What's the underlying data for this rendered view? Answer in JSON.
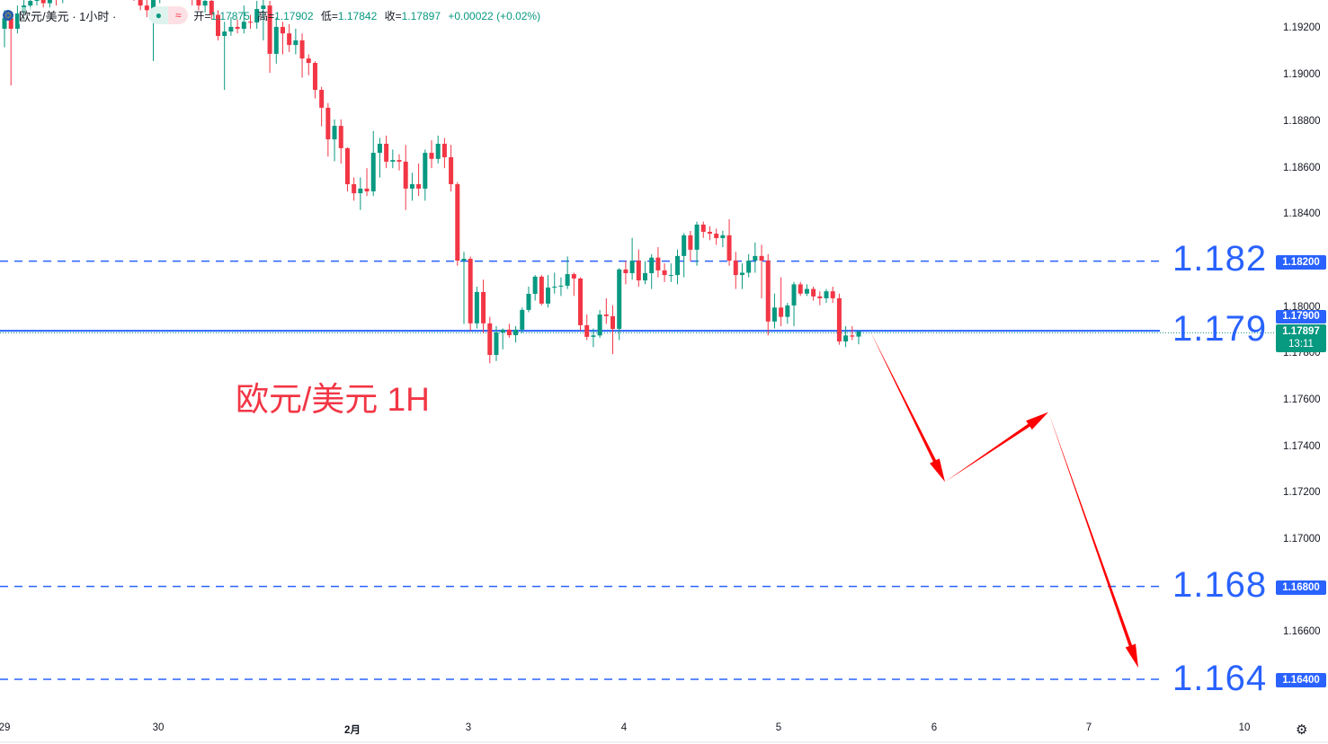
{
  "header": {
    "symbol": "欧元/美元 · 1小时 ·",
    "open_label": "开=",
    "open": "1.17875",
    "high_label": "高=",
    "high": "1.17902",
    "low_label": "低=",
    "low": "1.17842",
    "close_label": "收=",
    "close": "1.17897",
    "change": "+0.00022 (+0.02%)",
    "market_dot_icon": "●",
    "wave_icon": "≈"
  },
  "annotation": "欧元/美元 1H",
  "levels": [
    {
      "label": "1.182",
      "price": 1.182,
      "badge": "1.18200",
      "style": "dashed"
    },
    {
      "label": "1.179",
      "price": 1.179,
      "badge": "1.17900",
      "style": "solid"
    },
    {
      "label": "1.168",
      "price": 1.168,
      "badge": "1.16800",
      "style": "dashed"
    },
    {
      "label": "1.164",
      "price": 1.164,
      "badge": "1.16400",
      "style": "dashed"
    }
  ],
  "current_price": {
    "value": "1.17897",
    "countdown": "13:11",
    "price": 1.17897
  },
  "price_axis": [
    "1.19200",
    "1.19000",
    "1.18800",
    "1.18600",
    "1.18400",
    "1.18000",
    "1.17800",
    "1.17600",
    "1.17400",
    "1.17200",
    "1.17000",
    "1.16600"
  ],
  "time_axis": [
    "29",
    "30",
    "2月",
    "3",
    "4",
    "5",
    "6",
    "7",
    "10"
  ],
  "colors": {
    "up": "#089981",
    "down": "#f23645",
    "level": "#2962ff",
    "arrow": "#ff0000"
  },
  "chart_data": {
    "type": "candlestick",
    "title": "欧元/美元 · 1小时",
    "ylim": [
      1.1615,
      1.1932
    ],
    "projection_path": [
      1.17897,
      1.1725,
      1.1755,
      1.1645
    ],
    "candles": [
      [
        1.192,
        1.1928,
        1.1912,
        1.19246
      ],
      [
        1.19246,
        1.1927,
        1.18956,
        1.192
      ],
      [
        1.192,
        1.193,
        1.1918,
        1.19266
      ],
      [
        1.19266,
        1.1934,
        1.1924,
        1.193
      ],
      [
        1.193,
        1.1936,
        1.1928,
        1.1932
      ],
      [
        1.1932,
        1.1938,
        1.193,
        1.1934
      ],
      [
        1.1934,
        1.1937,
        1.1929,
        1.1931
      ],
      [
        1.1931,
        1.1939,
        1.1929,
        1.1935
      ],
      [
        1.1935,
        1.1938,
        1.193,
        1.1933
      ],
      [
        1.1933,
        1.194,
        1.1931,
        1.1936
      ],
      [
        1.1936,
        1.1942,
        1.1934,
        1.1938
      ],
      [
        1.1938,
        1.1944,
        1.1936,
        1.194
      ],
      [
        1.194,
        1.1943,
        1.1936,
        1.1939
      ],
      [
        1.1939,
        1.1945,
        1.1937,
        1.1941
      ],
      [
        1.1941,
        1.1944,
        1.1938,
        1.194
      ],
      [
        1.194,
        1.1946,
        1.1938,
        1.1942
      ],
      [
        1.1942,
        1.1945,
        1.1937,
        1.1939
      ],
      [
        1.1939,
        1.1943,
        1.1936,
        1.194
      ],
      [
        1.194,
        1.1942,
        1.1935,
        1.1938
      ],
      [
        1.1938,
        1.1941,
        1.1934,
        1.1937
      ],
      [
        1.1937,
        1.194,
        1.1932,
        1.1934
      ],
      [
        1.1934,
        1.1936,
        1.1928,
        1.193
      ],
      [
        1.193,
        1.1933,
        1.1925,
        1.1928
      ],
      [
        1.1928,
        1.1935,
        1.19061,
        1.1933
      ],
      [
        1.1933,
        1.1938,
        1.1931,
        1.1935
      ],
      [
        1.1935,
        1.194,
        1.1933,
        1.1937
      ],
      [
        1.1937,
        1.194,
        1.1934,
        1.1936
      ],
      [
        1.1936,
        1.1942,
        1.1934,
        1.1938
      ],
      [
        1.1938,
        1.194,
        1.1933,
        1.1935
      ],
      [
        1.1935,
        1.1937,
        1.193,
        1.1933
      ],
      [
        1.1933,
        1.1935,
        1.1928,
        1.193
      ],
      [
        1.193,
        1.1934,
        1.1927,
        1.1932
      ],
      [
        1.1932,
        1.1934,
        1.1924,
        1.1926
      ],
      [
        1.1926,
        1.1928,
        1.1915,
        1.19169
      ],
      [
        1.19169,
        1.1923,
        1.18937,
        1.19188
      ],
      [
        1.19188,
        1.1925,
        1.1917,
        1.19208
      ],
      [
        1.19208,
        1.1924,
        1.1918,
        1.192
      ],
      [
        1.192,
        1.193,
        1.1918,
        1.1923
      ],
      [
        1.1923,
        1.1926,
        1.192,
        1.19227
      ],
      [
        1.19227,
        1.1932,
        1.192,
        1.19285
      ],
      [
        1.19285,
        1.1933,
        1.1915,
        1.193
      ],
      [
        1.193,
        1.1932,
        1.1901,
        1.19092
      ],
      [
        1.19092,
        1.1925,
        1.1905,
        1.19208
      ],
      [
        1.19208,
        1.1923,
        1.1909,
        1.1918
      ],
      [
        1.1918,
        1.1922,
        1.191,
        1.1913
      ],
      [
        1.1913,
        1.192,
        1.1909,
        1.1915
      ],
      [
        1.1915,
        1.1918,
        1.1899,
        1.19072
      ],
      [
        1.19072,
        1.1909,
        1.19,
        1.19053
      ],
      [
        1.19053,
        1.1906,
        1.189,
        1.18937
      ],
      [
        1.18937,
        1.1895,
        1.1878,
        1.1886
      ],
      [
        1.1886,
        1.1888,
        1.1865,
        1.18724
      ],
      [
        1.18724,
        1.1881,
        1.1863,
        1.18782
      ],
      [
        1.18782,
        1.1881,
        1.1862,
        1.18686
      ],
      [
        1.18686,
        1.1869,
        1.185,
        1.18531
      ],
      [
        1.18531,
        1.1856,
        1.1846,
        1.18492
      ],
      [
        1.18492,
        1.1856,
        1.1842,
        1.18512
      ],
      [
        1.18512,
        1.186,
        1.1848,
        1.185
      ],
      [
        1.185,
        1.1876,
        1.1848,
        1.18666
      ],
      [
        1.18666,
        1.1873,
        1.1856,
        1.18705
      ],
      [
        1.18705,
        1.1874,
        1.186,
        1.18628
      ],
      [
        1.18628,
        1.1868,
        1.186,
        1.18635
      ],
      [
        1.18635,
        1.1866,
        1.1859,
        1.18628
      ],
      [
        1.18628,
        1.187,
        1.1842,
        1.18512
      ],
      [
        1.18512,
        1.1858,
        1.1846,
        1.18531
      ],
      [
        1.18531,
        1.1862,
        1.1848,
        1.18512
      ],
      [
        1.18512,
        1.1868,
        1.1846,
        1.18666
      ],
      [
        1.18666,
        1.1872,
        1.186,
        1.1864
      ],
      [
        1.1864,
        1.1874,
        1.1862,
        1.18705
      ],
      [
        1.18705,
        1.1873,
        1.186,
        1.18647
      ],
      [
        1.18647,
        1.187,
        1.185,
        1.18531
      ],
      [
        1.18531,
        1.1854,
        1.1818,
        1.18202
      ],
      [
        1.18202,
        1.1824,
        1.1793,
        1.1821
      ],
      [
        1.1821,
        1.1822,
        1.179,
        1.17932
      ],
      [
        1.17932,
        1.1809,
        1.1791,
        1.18067
      ],
      [
        1.18067,
        1.1812,
        1.1789,
        1.17932
      ],
      [
        1.17932,
        1.1796,
        1.1776,
        1.17796
      ],
      [
        1.17796,
        1.1792,
        1.1777,
        1.17893
      ],
      [
        1.17893,
        1.1791,
        1.1782,
        1.17905
      ],
      [
        1.17905,
        1.1793,
        1.1787,
        1.17881
      ],
      [
        1.17881,
        1.1792,
        1.1785,
        1.17905
      ],
      [
        1.17905,
        1.18,
        1.1789,
        1.1799
      ],
      [
        1.1799,
        1.1809,
        1.1798,
        1.18059
      ],
      [
        1.18059,
        1.1814,
        1.1803,
        1.18133
      ],
      [
        1.18133,
        1.1814,
        1.1801,
        1.18017
      ],
      [
        1.18017,
        1.1814,
        1.18,
        1.18086
      ],
      [
        1.18086,
        1.1815,
        1.1806,
        1.1809
      ],
      [
        1.1809,
        1.1813,
        1.1805,
        1.18094
      ],
      [
        1.18094,
        1.1822,
        1.1808,
        1.18144
      ],
      [
        1.18144,
        1.1815,
        1.1805,
        1.18125
      ],
      [
        1.18125,
        1.1813,
        1.179,
        1.17924
      ],
      [
        1.17924,
        1.1797,
        1.1786,
        1.17874
      ],
      [
        1.17874,
        1.1791,
        1.1783,
        1.1788
      ],
      [
        1.1788,
        1.1799,
        1.1787,
        1.1797
      ],
      [
        1.1797,
        1.1804,
        1.1793,
        1.17963
      ],
      [
        1.17963,
        1.1801,
        1.178,
        1.17908
      ],
      [
        1.17908,
        1.1817,
        1.1786,
        1.18164
      ],
      [
        1.18164,
        1.182,
        1.181,
        1.18148
      ],
      [
        1.18148,
        1.183,
        1.1812,
        1.18202
      ],
      [
        1.18202,
        1.1825,
        1.1809,
        1.18117
      ],
      [
        1.18117,
        1.182,
        1.181,
        1.18148
      ],
      [
        1.18148,
        1.1823,
        1.1808,
        1.18215
      ],
      [
        1.18215,
        1.1826,
        1.1813,
        1.1816
      ],
      [
        1.1816,
        1.1819,
        1.1811,
        1.1814
      ],
      [
        1.1814,
        1.1819,
        1.1811,
        1.1814
      ],
      [
        1.1814,
        1.1825,
        1.181,
        1.18222
      ],
      [
        1.18222,
        1.1832,
        1.1813,
        1.18311
      ],
      [
        1.18311,
        1.1833,
        1.182,
        1.18249
      ],
      [
        1.18249,
        1.1837,
        1.1818,
        1.18357
      ],
      [
        1.18357,
        1.1837,
        1.183,
        1.18326
      ],
      [
        1.18326,
        1.1835,
        1.1829,
        1.18318
      ],
      [
        1.18318,
        1.1834,
        1.1827,
        1.18299
      ],
      [
        1.18299,
        1.1833,
        1.1826,
        1.18311
      ],
      [
        1.18311,
        1.1838,
        1.1818,
        1.18202
      ],
      [
        1.18202,
        1.1824,
        1.1808,
        1.1814
      ],
      [
        1.1814,
        1.1819,
        1.1808,
        1.1815
      ],
      [
        1.1815,
        1.1823,
        1.1813,
        1.18202
      ],
      [
        1.18202,
        1.1828,
        1.1815,
        1.18222
      ],
      [
        1.18222,
        1.1827,
        1.1804,
        1.18202
      ],
      [
        1.18202,
        1.1823,
        1.1788,
        1.1794
      ],
      [
        1.1794,
        1.1806,
        1.1791,
        1.18
      ],
      [
        1.18,
        1.1813,
        1.1792,
        1.1796
      ],
      [
        1.1796,
        1.1802,
        1.1793,
        1.18009
      ],
      [
        1.18009,
        1.1811,
        1.1792,
        1.181
      ],
      [
        1.181,
        1.1811,
        1.1805,
        1.1806
      ],
      [
        1.1806,
        1.181,
        1.1805,
        1.1808
      ],
      [
        1.1808,
        1.1809,
        1.1803,
        1.18048
      ],
      [
        1.18048,
        1.1807,
        1.1801,
        1.1804
      ],
      [
        1.1804,
        1.1808,
        1.1802,
        1.1807
      ],
      [
        1.1807,
        1.1809,
        1.1802,
        1.1804
      ],
      [
        1.1804,
        1.1806,
        1.1784,
        1.17854
      ],
      [
        1.17854,
        1.1792,
        1.1783,
        1.1788
      ],
      [
        1.1788,
        1.1792,
        1.1786,
        1.17875
      ],
      [
        1.17875,
        1.17902,
        1.17842,
        1.17897
      ]
    ]
  }
}
